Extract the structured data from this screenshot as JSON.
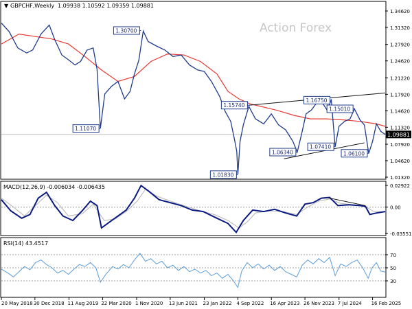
{
  "header": {
    "symbol_label": "GBPCHF,Weekly",
    "ohlc": "1.09938 1.10592 1.09359 1.09881"
  },
  "watermark": "Action Forex",
  "colors": {
    "price": "#1f3a8a",
    "ma": "#e53935",
    "macd": "#0a1a80",
    "signal": "#b9b9b9",
    "rsi": "#5b9bd5",
    "trendline": "#111111",
    "label_border": "#1f3a8a",
    "last_price_bg": "#000000"
  },
  "chart_data": [
    {
      "type": "line",
      "name": "price",
      "y_axis_ticks": [
        "1.34620",
        "1.31320",
        "1.27920",
        "1.24620",
        "1.21220",
        "1.17920",
        "1.14620",
        "1.11320",
        "1.07920",
        "1.04620",
        "1.01320"
      ],
      "ylim": [
        1.0132,
        1.3462
      ],
      "last_price_label": "1.09881",
      "x_ticks": [
        {
          "x": 2018.38,
          "label": "20 May 2018"
        },
        {
          "x": 2018.99,
          "label": "30 Dec 2018"
        },
        {
          "x": 2019.61,
          "label": "11 Aug 2019"
        },
        {
          "x": 2020.22,
          "label": "22 Mar 2020"
        },
        {
          "x": 2020.84,
          "label": "1 Nov 2020"
        },
        {
          "x": 2021.45,
          "label": "13 Jun 2021"
        },
        {
          "x": 2022.07,
          "label": "23 Jan 2022"
        },
        {
          "x": 2022.68,
          "label": "4 Sep 2022"
        },
        {
          "x": 2023.29,
          "label": "16 Apr 2023"
        },
        {
          "x": 2023.9,
          "label": "26 Nov 2023"
        },
        {
          "x": 2024.52,
          "label": "7 Jul 2024"
        },
        {
          "x": 2025.13,
          "label": "16 Feb 2025"
        }
      ],
      "xlim": [
        2018.38,
        2025.36
      ],
      "price_points": [
        [
          2018.38,
          1.322
        ],
        [
          2018.52,
          1.305
        ],
        [
          2018.68,
          1.272
        ],
        [
          2018.84,
          1.262
        ],
        [
          2018.95,
          1.268
        ],
        [
          2019.1,
          1.3
        ],
        [
          2019.25,
          1.318
        ],
        [
          2019.35,
          1.289
        ],
        [
          2019.48,
          1.258
        ],
        [
          2019.58,
          1.25
        ],
        [
          2019.72,
          1.238
        ],
        [
          2019.82,
          1.245
        ],
        [
          2019.94,
          1.268
        ],
        [
          2020.05,
          1.272
        ],
        [
          2020.12,
          1.23
        ],
        [
          2020.18,
          1.111
        ],
        [
          2020.26,
          1.18
        ],
        [
          2020.38,
          1.195
        ],
        [
          2020.5,
          1.205
        ],
        [
          2020.62,
          1.17
        ],
        [
          2020.72,
          1.185
        ],
        [
          2020.8,
          1.22
        ],
        [
          2020.88,
          1.2475
        ],
        [
          2020.96,
          1.306
        ],
        [
          2021.05,
          1.285
        ],
        [
          2021.2,
          1.276
        ],
        [
          2021.35,
          1.268
        ],
        [
          2021.5,
          1.255
        ],
        [
          2021.65,
          1.258
        ],
        [
          2021.8,
          1.238
        ],
        [
          2021.95,
          1.228
        ],
        [
          2022.07,
          1.225
        ],
        [
          2022.2,
          1.205
        ],
        [
          2022.35,
          1.175
        ],
        [
          2022.45,
          1.145
        ],
        [
          2022.55,
          1.125
        ],
        [
          2022.62,
          1.088
        ],
        [
          2022.66,
          1.065
        ],
        [
          2022.68,
          1.019
        ],
        [
          2022.72,
          1.085
        ],
        [
          2022.78,
          1.118
        ],
        [
          2022.88,
          1.155
        ],
        [
          2023.0,
          1.13
        ],
        [
          2023.15,
          1.12
        ],
        [
          2023.29,
          1.14
        ],
        [
          2023.42,
          1.118
        ],
        [
          2023.55,
          1.108
        ],
        [
          2023.68,
          1.085
        ],
        [
          2023.76,
          1.0635
        ],
        [
          2023.84,
          1.1
        ],
        [
          2023.92,
          1.14
        ],
        [
          2024.02,
          1.148
        ],
        [
          2024.1,
          1.16
        ],
        [
          2024.2,
          1.165
        ],
        [
          2024.3,
          1.148
        ],
        [
          2024.38,
          1.1675
        ],
        [
          2024.45,
          1.074
        ],
        [
          2024.52,
          1.115
        ],
        [
          2024.62,
          1.125
        ],
        [
          2024.72,
          1.13
        ],
        [
          2024.8,
          1.15
        ],
        [
          2024.9,
          1.128
        ],
        [
          2024.98,
          1.118
        ],
        [
          2025.06,
          1.061
        ],
        [
          2025.13,
          1.085
        ],
        [
          2025.2,
          1.12
        ],
        [
          2025.28,
          1.105
        ],
        [
          2025.36,
          1.0988
        ]
      ],
      "ma_points": [
        [
          2018.38,
          1.28
        ],
        [
          2018.7,
          1.3
        ],
        [
          2019.0,
          1.295
        ],
        [
          2019.3,
          1.29
        ],
        [
          2019.6,
          1.28
        ],
        [
          2019.9,
          1.255
        ],
        [
          2020.2,
          1.228
        ],
        [
          2020.5,
          1.205
        ],
        [
          2020.8,
          1.215
        ],
        [
          2021.1,
          1.245
        ],
        [
          2021.4,
          1.26
        ],
        [
          2021.7,
          1.258
        ],
        [
          2022.0,
          1.245
        ],
        [
          2022.3,
          1.22
        ],
        [
          2022.5,
          1.185
        ],
        [
          2022.7,
          1.17
        ],
        [
          2022.9,
          1.16
        ],
        [
          2023.1,
          1.155
        ],
        [
          2023.4,
          1.147
        ],
        [
          2023.7,
          1.137
        ],
        [
          2024.0,
          1.13
        ],
        [
          2024.3,
          1.13
        ],
        [
          2024.6,
          1.128
        ],
        [
          2024.9,
          1.125
        ],
        [
          2025.2,
          1.12
        ],
        [
          2025.36,
          1.115
        ]
      ],
      "annotations": [
        {
          "label": "1.30700",
          "x": 2020.92,
          "y": 1.307
        },
        {
          "label": "1.11070",
          "x": 2020.18,
          "y": 1.1107
        },
        {
          "label": "1.15740",
          "x": 2022.88,
          "y": 1.1574
        },
        {
          "label": "1.01830",
          "x": 2022.68,
          "y": 1.0183
        },
        {
          "label": "1.16750",
          "x": 2024.38,
          "y": 1.1675
        },
        {
          "label": "1.15010",
          "x": 2024.8,
          "y": 1.1501
        },
        {
          "label": "1.06340",
          "x": 2023.76,
          "y": 1.0634
        },
        {
          "label": "1.07410",
          "x": 2024.45,
          "y": 1.0741
        },
        {
          "label": "1.06100",
          "x": 2025.06,
          "y": 1.061
        }
      ],
      "trendlines": [
        {
          "from": [
            2022.88,
            1.1574
          ],
          "to": [
            2025.36,
            1.182
          ]
        },
        {
          "from": [
            2023.52,
            1.05
          ],
          "to": [
            2024.98,
            1.082
          ]
        }
      ],
      "horizontal_line_y": 1.0988
    },
    {
      "type": "line",
      "name": "macd",
      "label": "MACD(12,26,9) -0.006034 -0.006435",
      "y_axis_ticks": [
        "0.02922",
        "0.00",
        "-0.035518"
      ],
      "ylim": [
        -0.0355,
        0.0292
      ],
      "macd_points": [
        [
          2018.38,
          0.01
        ],
        [
          2018.55,
          -0.005
        ],
        [
          2018.75,
          -0.015
        ],
        [
          2018.9,
          -0.01
        ],
        [
          2019.05,
          0.012
        ],
        [
          2019.2,
          0.02
        ],
        [
          2019.35,
          0.002
        ],
        [
          2019.5,
          -0.012
        ],
        [
          2019.68,
          -0.018
        ],
        [
          2019.85,
          -0.005
        ],
        [
          2020.0,
          0.008
        ],
        [
          2020.12,
          0.002
        ],
        [
          2020.2,
          -0.028
        ],
        [
          2020.35,
          -0.02
        ],
        [
          2020.5,
          -0.012
        ],
        [
          2020.65,
          -0.004
        ],
        [
          2020.8,
          0.012
        ],
        [
          2020.92,
          0.029
        ],
        [
          2021.05,
          0.022
        ],
        [
          2021.25,
          0.01
        ],
        [
          2021.45,
          0.006
        ],
        [
          2021.65,
          0.002
        ],
        [
          2021.85,
          -0.004
        ],
        [
          2022.05,
          -0.006
        ],
        [
          2022.3,
          -0.015
        ],
        [
          2022.5,
          -0.022
        ],
        [
          2022.65,
          -0.034
        ],
        [
          2022.78,
          -0.018
        ],
        [
          2022.95,
          -0.004
        ],
        [
          2023.15,
          -0.006
        ],
        [
          2023.35,
          -0.003
        ],
        [
          2023.55,
          -0.008
        ],
        [
          2023.75,
          -0.012
        ],
        [
          2023.9,
          0.004
        ],
        [
          2024.05,
          0.006
        ],
        [
          2024.2,
          0.012
        ],
        [
          2024.35,
          0.013
        ],
        [
          2024.5,
          0.002
        ],
        [
          2024.7,
          0.003
        ],
        [
          2024.9,
          0.002
        ],
        [
          2025.0,
          0.001
        ],
        [
          2025.08,
          -0.01
        ],
        [
          2025.2,
          -0.008
        ],
        [
          2025.36,
          -0.006
        ]
      ],
      "signal_points": [
        [
          2018.38,
          0.012
        ],
        [
          2018.6,
          0.0
        ],
        [
          2018.8,
          -0.012
        ],
        [
          2019.0,
          0.002
        ],
        [
          2019.2,
          0.016
        ],
        [
          2019.4,
          0.006
        ],
        [
          2019.6,
          -0.012
        ],
        [
          2019.85,
          -0.009
        ],
        [
          2020.05,
          0.004
        ],
        [
          2020.25,
          -0.018
        ],
        [
          2020.45,
          -0.016
        ],
        [
          2020.65,
          -0.006
        ],
        [
          2020.85,
          0.008
        ],
        [
          2021.0,
          0.024
        ],
        [
          2021.2,
          0.015
        ],
        [
          2021.45,
          0.008
        ],
        [
          2021.7,
          0.002
        ],
        [
          2021.95,
          -0.004
        ],
        [
          2022.25,
          -0.01
        ],
        [
          2022.5,
          -0.018
        ],
        [
          2022.7,
          -0.028
        ],
        [
          2022.85,
          -0.02
        ],
        [
          2023.0,
          -0.008
        ],
        [
          2023.25,
          -0.005
        ],
        [
          2023.5,
          -0.006
        ],
        [
          2023.75,
          -0.01
        ],
        [
          2023.95,
          0.0
        ],
        [
          2024.15,
          0.008
        ],
        [
          2024.35,
          0.011
        ],
        [
          2024.55,
          0.005
        ],
        [
          2024.8,
          0.003
        ],
        [
          2025.0,
          0.001
        ],
        [
          2025.15,
          -0.006
        ],
        [
          2025.36,
          -0.0064
        ]
      ],
      "trendline": {
        "from": [
          2024.32,
          0.0125
        ],
        "to": [
          2025.0,
          0.002
        ]
      }
    },
    {
      "type": "line",
      "name": "rsi",
      "label": "RSI(14) 43.4517",
      "y_axis_ticks": [
        "70",
        "50",
        "30"
      ],
      "ylim": [
        8,
        92
      ],
      "rsi_points": [
        [
          2018.38,
          48
        ],
        [
          2018.5,
          42
        ],
        [
          2018.6,
          36
        ],
        [
          2018.7,
          44
        ],
        [
          2018.8,
          52
        ],
        [
          2018.9,
          47
        ],
        [
          2019.0,
          58
        ],
        [
          2019.1,
          62
        ],
        [
          2019.2,
          55
        ],
        [
          2019.3,
          50
        ],
        [
          2019.4,
          42
        ],
        [
          2019.5,
          46
        ],
        [
          2019.6,
          40
        ],
        [
          2019.7,
          48
        ],
        [
          2019.8,
          55
        ],
        [
          2019.9,
          52
        ],
        [
          2020.0,
          58
        ],
        [
          2020.1,
          50
        ],
        [
          2020.18,
          28
        ],
        [
          2020.28,
          40
        ],
        [
          2020.4,
          52
        ],
        [
          2020.5,
          48
        ],
        [
          2020.6,
          55
        ],
        [
          2020.7,
          50
        ],
        [
          2020.8,
          62
        ],
        [
          2020.9,
          72
        ],
        [
          2021.0,
          60
        ],
        [
          2021.1,
          64
        ],
        [
          2021.2,
          56
        ],
        [
          2021.3,
          60
        ],
        [
          2021.4,
          50
        ],
        [
          2021.5,
          54
        ],
        [
          2021.6,
          46
        ],
        [
          2021.7,
          52
        ],
        [
          2021.8,
          44
        ],
        [
          2021.9,
          48
        ],
        [
          2022.0,
          42
        ],
        [
          2022.1,
          46
        ],
        [
          2022.2,
          38
        ],
        [
          2022.3,
          42
        ],
        [
          2022.4,
          34
        ],
        [
          2022.5,
          40
        ],
        [
          2022.6,
          30
        ],
        [
          2022.68,
          20
        ],
        [
          2022.75,
          45
        ],
        [
          2022.85,
          58
        ],
        [
          2022.95,
          50
        ],
        [
          2023.05,
          56
        ],
        [
          2023.15,
          48
        ],
        [
          2023.25,
          54
        ],
        [
          2023.35,
          46
        ],
        [
          2023.45,
          52
        ],
        [
          2023.55,
          44
        ],
        [
          2023.65,
          40
        ],
        [
          2023.75,
          36
        ],
        [
          2023.85,
          54
        ],
        [
          2023.95,
          62
        ],
        [
          2024.05,
          56
        ],
        [
          2024.15,
          64
        ],
        [
          2024.25,
          58
        ],
        [
          2024.35,
          66
        ],
        [
          2024.45,
          38
        ],
        [
          2024.55,
          56
        ],
        [
          2024.65,
          52
        ],
        [
          2024.75,
          58
        ],
        [
          2024.85,
          62
        ],
        [
          2024.95,
          50
        ],
        [
          2025.05,
          34
        ],
        [
          2025.12,
          50
        ],
        [
          2025.2,
          58
        ],
        [
          2025.28,
          45
        ],
        [
          2025.36,
          43.45
        ]
      ]
    }
  ]
}
